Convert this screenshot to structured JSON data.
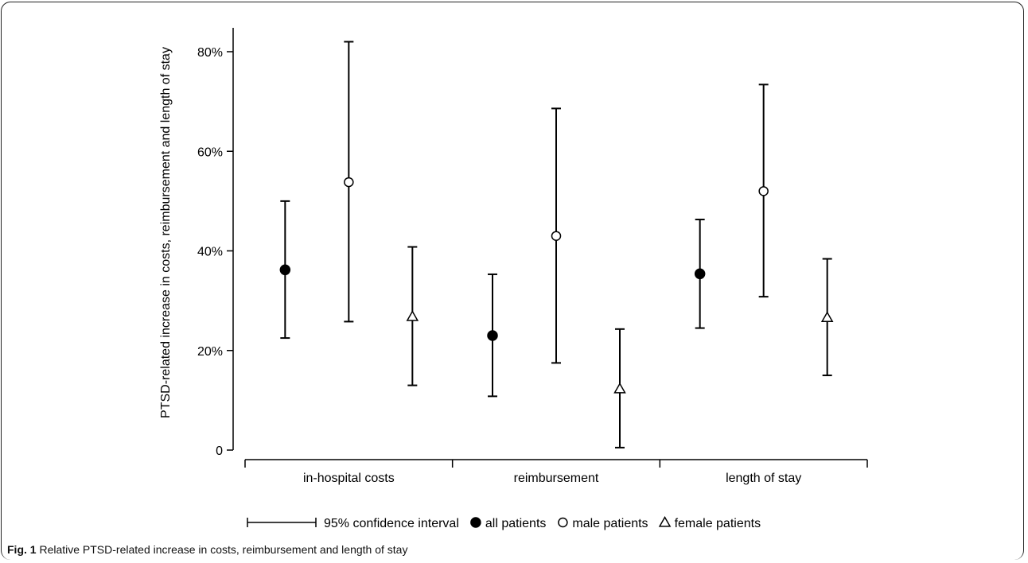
{
  "chart_data": {
    "type": "scatter",
    "subtype": "point estimates with 95% confidence interval error bars",
    "ylabel": "PTSD-related increase in costs, reimbursement and length of stay",
    "xlabel": "",
    "ylim": [
      0,
      0.8
    ],
    "yticks": [
      0,
      0.2,
      0.4,
      0.6,
      0.8
    ],
    "ytick_labels": [
      "0",
      "20%",
      "40%",
      "60%",
      "80%"
    ],
    "categories": [
      "in-hospital costs",
      "reimbursement",
      "length of stay"
    ],
    "grid": false,
    "legend_position": "bottom",
    "legend_items": [
      {
        "label": "95% confidence interval",
        "marker": "errorbar"
      },
      {
        "label": "all patients",
        "marker": "filled-circle"
      },
      {
        "label": "male patients",
        "marker": "open-circle"
      },
      {
        "label": "female patients",
        "marker": "open-triangle"
      }
    ],
    "series": [
      {
        "name": "all patients",
        "marker": "filled-circle",
        "points": [
          {
            "category": "in-hospital costs",
            "estimate": 0.362,
            "ci": [
              0.225,
              0.5
            ]
          },
          {
            "category": "reimbursement",
            "estimate": 0.23,
            "ci": [
              0.108,
              0.353
            ]
          },
          {
            "category": "length of stay",
            "estimate": 0.354,
            "ci": [
              0.245,
              0.463
            ]
          }
        ]
      },
      {
        "name": "male patients",
        "marker": "open-circle",
        "points": [
          {
            "category": "in-hospital costs",
            "estimate": 0.538,
            "ci": [
              0.258,
              0.82
            ]
          },
          {
            "category": "reimbursement",
            "estimate": 0.43,
            "ci": [
              0.175,
              0.686
            ]
          },
          {
            "category": "length of stay",
            "estimate": 0.52,
            "ci": [
              0.308,
              0.734
            ]
          }
        ]
      },
      {
        "name": "female patients",
        "marker": "open-triangle",
        "points": [
          {
            "category": "in-hospital costs",
            "estimate": 0.268,
            "ci": [
              0.13,
              0.408
            ]
          },
          {
            "category": "reimbursement",
            "estimate": 0.123,
            "ci": [
              0.005,
              0.243
            ]
          },
          {
            "category": "length of stay",
            "estimate": 0.266,
            "ci": [
              0.15,
              0.384
            ]
          }
        ]
      }
    ]
  },
  "caption": {
    "label": "Fig. 1",
    "text": "Relative PTSD-related increase in costs, reimbursement and length of stay"
  }
}
